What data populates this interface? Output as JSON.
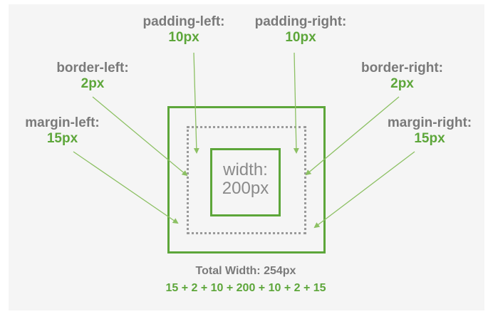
{
  "labels": {
    "padding_left": {
      "name": "padding-left:",
      "value": "10px"
    },
    "padding_right": {
      "name": "padding-right:",
      "value": "10px"
    },
    "border_left": {
      "name": "border-left:",
      "value": "2px"
    },
    "border_right": {
      "name": "border-right:",
      "value": "2px"
    },
    "margin_left": {
      "name": "margin-left:",
      "value": "15px"
    },
    "margin_right": {
      "name": "margin-right:",
      "value": "15px"
    }
  },
  "content": {
    "line1": "width:",
    "line2": "200px"
  },
  "total": {
    "label": "Total Width: 254px",
    "formula": "15 + 2 + 10 + 200 + 10 + 2 + 15"
  },
  "colors": {
    "green": "#5da63a",
    "gray": "#7a7a7a",
    "background": "#f5f5f5"
  }
}
